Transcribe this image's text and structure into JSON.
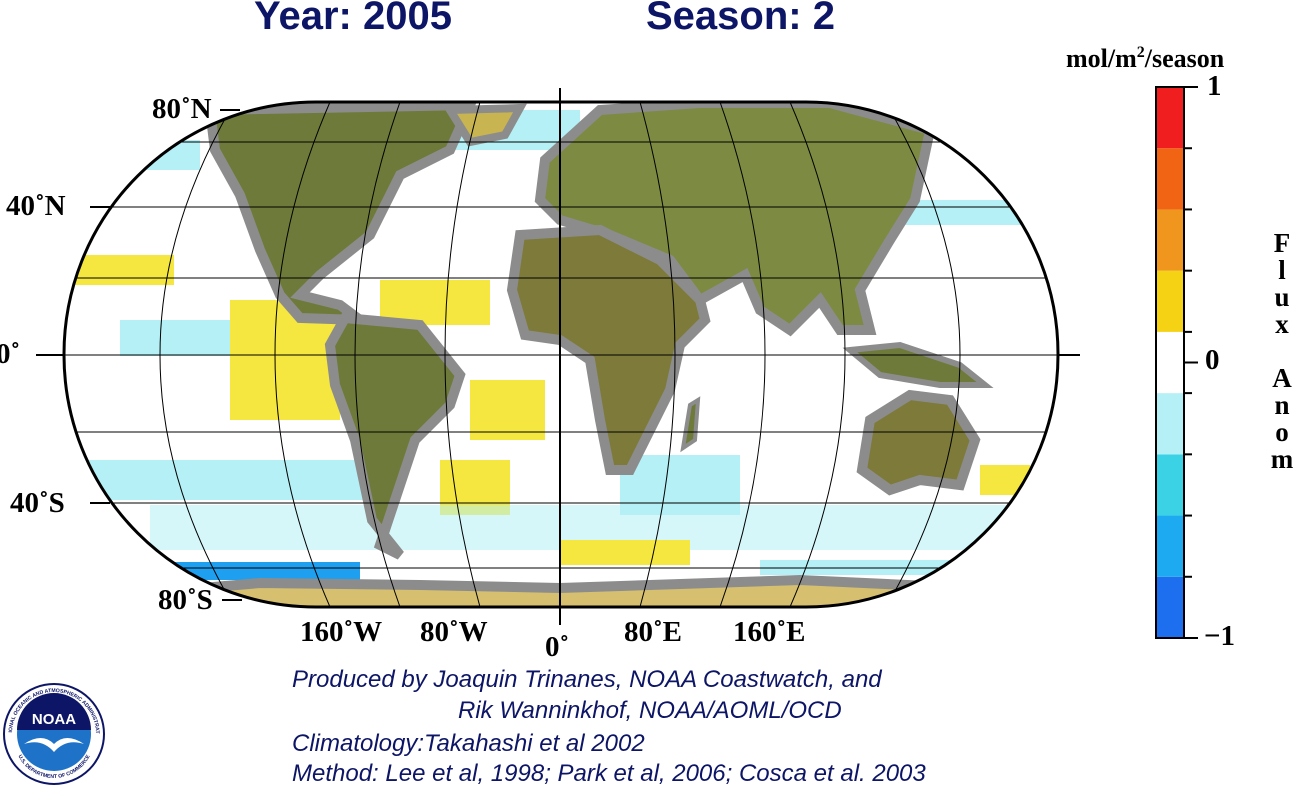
{
  "title": {
    "year": "Year: 2005",
    "season": "Season: 2"
  },
  "map": {
    "latitude_labels": [
      "80˚N",
      "40˚N",
      "0˚",
      "40˚S",
      "80˚S"
    ],
    "longitude_labels": [
      "160˚W",
      "80˚W",
      "0˚",
      "80˚E",
      "160˚E"
    ],
    "ocean_color": "#ffffff",
    "land_mask_color": "#8c8c8c",
    "land_color": "#6e7a3a"
  },
  "colorbar": {
    "unit_main": "mol/m",
    "unit_sup": "2",
    "unit_tail": "/season",
    "ticks": [
      "1",
      "0",
      "−1"
    ],
    "vertical_title": [
      "F",
      "l",
      "u",
      "x",
      "",
      "A",
      "n",
      "o",
      "m"
    ],
    "colors_top_to_bottom": [
      "#f01e1e",
      "#f06414",
      "#f0961e",
      "#f5d214",
      "#ffffff",
      "#b4f0f5",
      "#3cd2e6",
      "#1eaaf0",
      "#1e6ef0"
    ],
    "range": [
      -1,
      1
    ]
  },
  "credits": {
    "line1": "Produced by Joaquin Trinanes, NOAA Coastwatch, and",
    "line2": "Rik Wanninkhof, NOAA/AOML/OCD",
    "line3": "Climatology:Takahashi et al 2002",
    "line4": "Method: Lee et al, 1998; Park et al, 2006; Cosca et al. 2003"
  },
  "logo": {
    "center_text": "NOAA",
    "ring_top": "NATIONAL OCEANIC AND ATMOSPHERIC ADMINISTRATION",
    "ring_bottom": "U.S. DEPARTMENT OF COMMERCE"
  }
}
